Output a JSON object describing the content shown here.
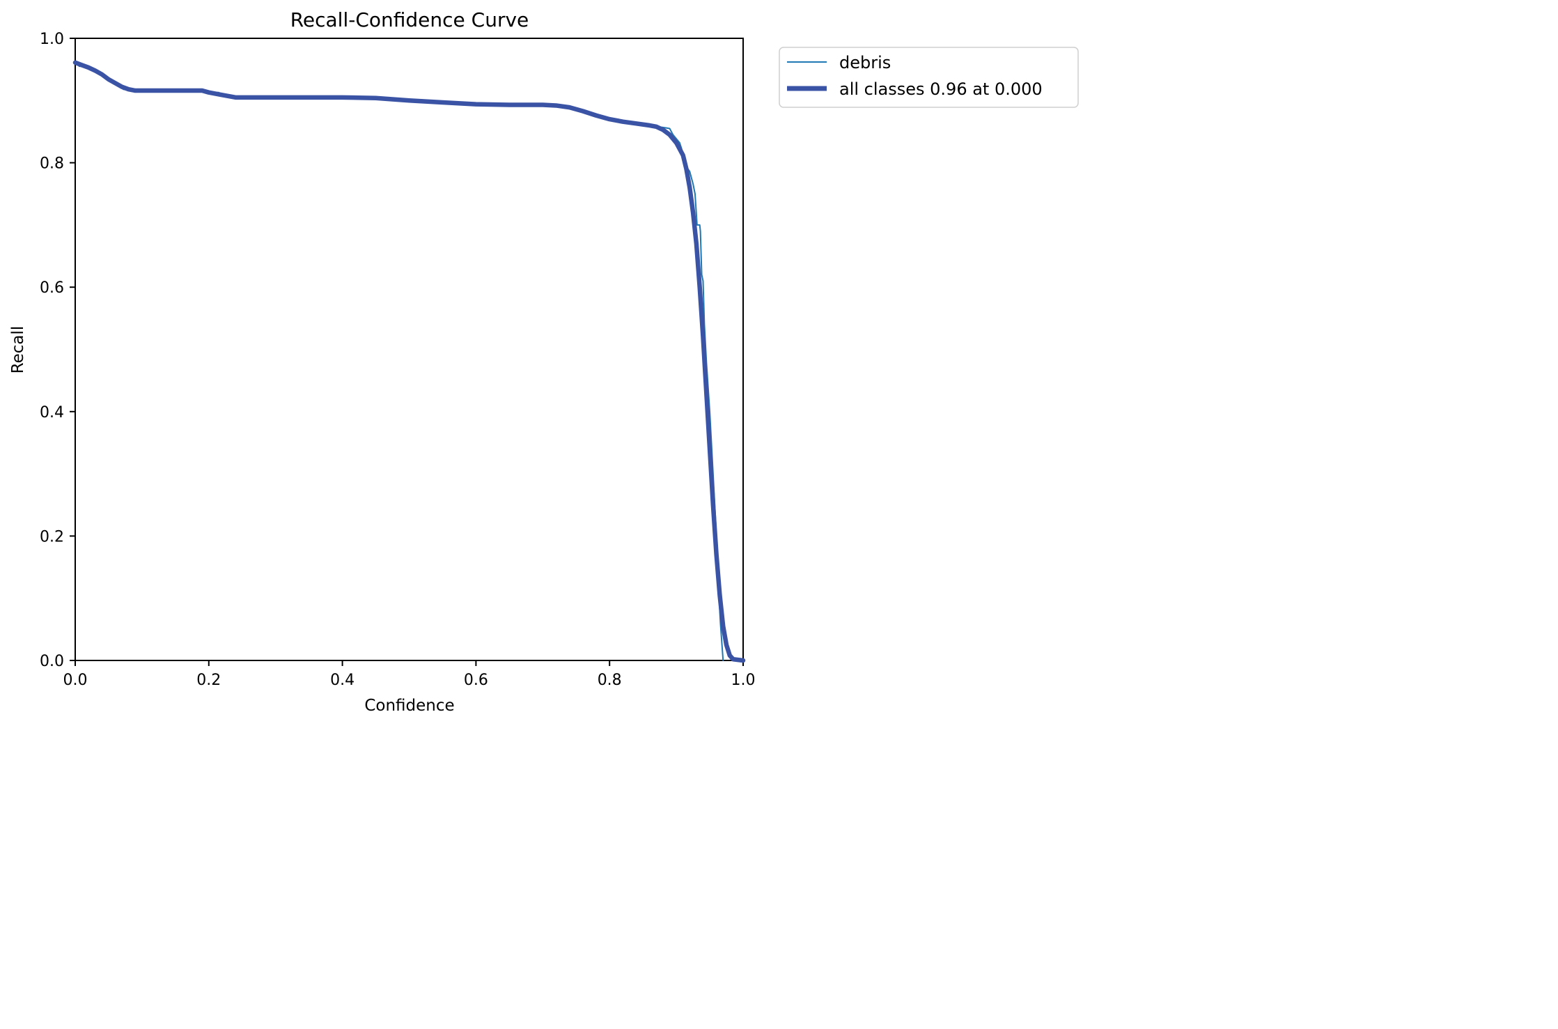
{
  "chart_data": {
    "type": "line",
    "title": "Recall-Confidence Curve",
    "xlabel": "Confidence",
    "ylabel": "Recall",
    "xlim": [
      0,
      1
    ],
    "ylim": [
      0,
      1
    ],
    "xticks": [
      0.0,
      0.2,
      0.4,
      0.6,
      0.8,
      1.0
    ],
    "yticks": [
      0.0,
      0.2,
      0.4,
      0.6,
      0.8,
      1.0
    ],
    "xtick_labels": [
      "0.0",
      "0.2",
      "0.4",
      "0.6",
      "0.8",
      "1.0"
    ],
    "ytick_labels": [
      "0.0",
      "0.2",
      "0.4",
      "0.6",
      "0.8",
      "1.0"
    ],
    "grid": false,
    "legend_position": "outside-top-right",
    "series": [
      {
        "name": "debris",
        "color": "#1f77b4",
        "style": "thin",
        "points": [
          [
            0.0,
            0.962
          ],
          [
            0.005,
            0.96
          ],
          [
            0.006,
            0.955
          ],
          [
            0.015,
            0.955
          ],
          [
            0.03,
            0.95
          ],
          [
            0.045,
            0.94
          ],
          [
            0.06,
            0.928
          ],
          [
            0.07,
            0.922
          ],
          [
            0.072,
            0.918
          ],
          [
            0.09,
            0.916
          ],
          [
            0.15,
            0.916
          ],
          [
            0.19,
            0.916
          ],
          [
            0.2,
            0.913
          ],
          [
            0.215,
            0.913
          ],
          [
            0.218,
            0.907
          ],
          [
            0.24,
            0.905
          ],
          [
            0.3,
            0.905
          ],
          [
            0.4,
            0.905
          ],
          [
            0.45,
            0.904
          ],
          [
            0.5,
            0.9
          ],
          [
            0.55,
            0.897
          ],
          [
            0.6,
            0.893
          ],
          [
            0.65,
            0.892
          ],
          [
            0.7,
            0.892
          ],
          [
            0.72,
            0.891
          ],
          [
            0.75,
            0.885
          ],
          [
            0.78,
            0.875
          ],
          [
            0.8,
            0.869
          ],
          [
            0.83,
            0.864
          ],
          [
            0.86,
            0.86
          ],
          [
            0.885,
            0.856
          ],
          [
            0.89,
            0.855
          ],
          [
            0.895,
            0.845
          ],
          [
            0.905,
            0.832
          ],
          [
            0.908,
            0.822
          ],
          [
            0.912,
            0.798
          ],
          [
            0.92,
            0.786
          ],
          [
            0.925,
            0.766
          ],
          [
            0.928,
            0.75
          ],
          [
            0.931,
            0.7
          ],
          [
            0.935,
            0.7
          ],
          [
            0.936,
            0.69
          ],
          [
            0.938,
            0.62
          ],
          [
            0.94,
            0.61
          ],
          [
            0.942,
            0.54
          ],
          [
            0.945,
            0.48
          ],
          [
            0.95,
            0.4
          ],
          [
            0.955,
            0.3
          ],
          [
            0.96,
            0.2
          ],
          [
            0.963,
            0.12
          ],
          [
            0.966,
            0.06
          ],
          [
            0.97,
            0.0
          ]
        ]
      },
      {
        "name": "all classes 0.96 at 0.000",
        "color": "#3a53a4",
        "style": "thick",
        "points": [
          [
            0.0,
            0.961
          ],
          [
            0.01,
            0.957
          ],
          [
            0.02,
            0.953
          ],
          [
            0.03,
            0.948
          ],
          [
            0.04,
            0.942
          ],
          [
            0.05,
            0.934
          ],
          [
            0.06,
            0.928
          ],
          [
            0.07,
            0.922
          ],
          [
            0.08,
            0.918
          ],
          [
            0.09,
            0.916
          ],
          [
            0.15,
            0.916
          ],
          [
            0.19,
            0.916
          ],
          [
            0.2,
            0.913
          ],
          [
            0.22,
            0.909
          ],
          [
            0.24,
            0.905
          ],
          [
            0.3,
            0.905
          ],
          [
            0.4,
            0.905
          ],
          [
            0.45,
            0.904
          ],
          [
            0.5,
            0.9
          ],
          [
            0.55,
            0.897
          ],
          [
            0.6,
            0.894
          ],
          [
            0.65,
            0.893
          ],
          [
            0.7,
            0.893
          ],
          [
            0.72,
            0.892
          ],
          [
            0.74,
            0.889
          ],
          [
            0.76,
            0.883
          ],
          [
            0.78,
            0.876
          ],
          [
            0.8,
            0.87
          ],
          [
            0.82,
            0.866
          ],
          [
            0.84,
            0.863
          ],
          [
            0.86,
            0.86
          ],
          [
            0.87,
            0.858
          ],
          [
            0.88,
            0.853
          ],
          [
            0.89,
            0.845
          ],
          [
            0.9,
            0.832
          ],
          [
            0.91,
            0.812
          ],
          [
            0.915,
            0.79
          ],
          [
            0.92,
            0.76
          ],
          [
            0.925,
            0.72
          ],
          [
            0.93,
            0.67
          ],
          [
            0.935,
            0.6
          ],
          [
            0.94,
            0.52
          ],
          [
            0.945,
            0.43
          ],
          [
            0.95,
            0.34
          ],
          [
            0.955,
            0.25
          ],
          [
            0.96,
            0.17
          ],
          [
            0.965,
            0.105
          ],
          [
            0.97,
            0.055
          ],
          [
            0.975,
            0.025
          ],
          [
            0.98,
            0.008
          ],
          [
            0.985,
            0.002
          ],
          [
            1.0,
            0.0
          ]
        ]
      }
    ]
  }
}
